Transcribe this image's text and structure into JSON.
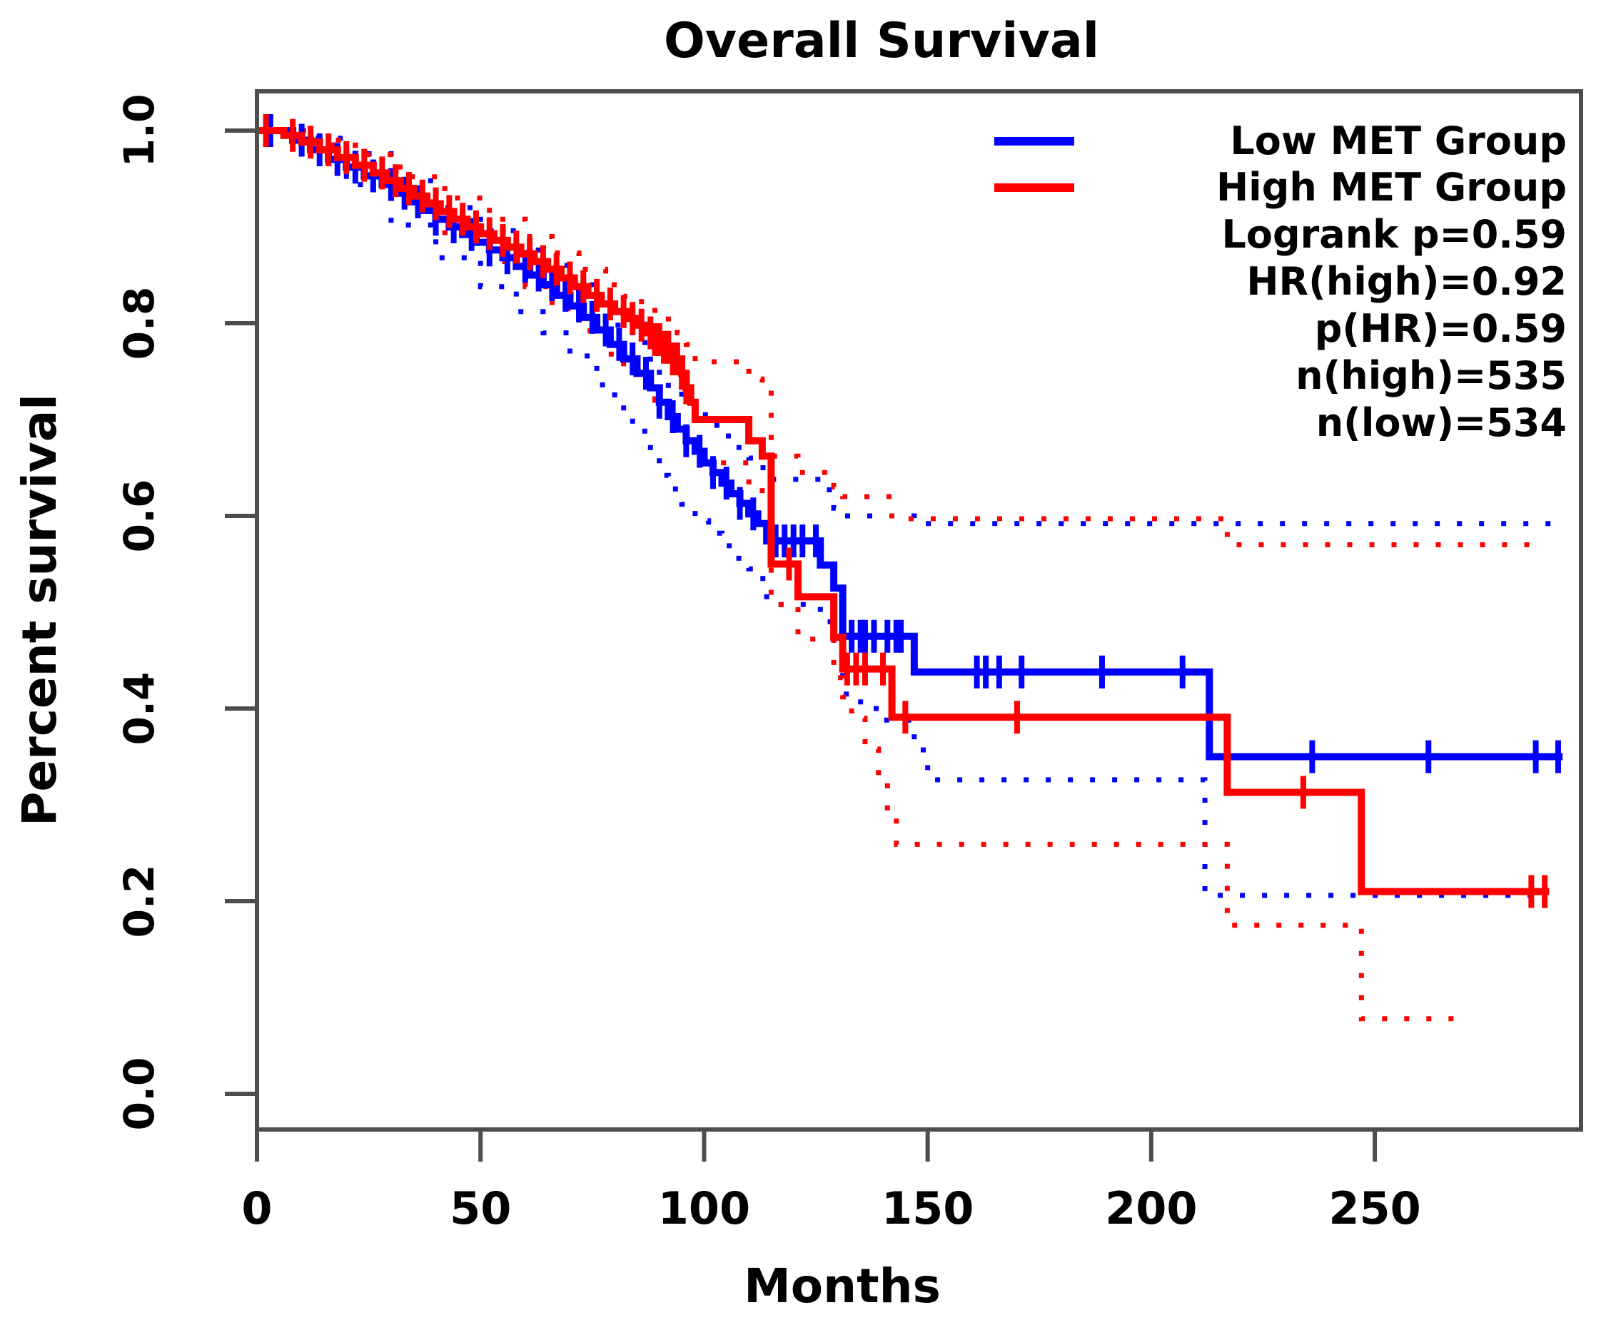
{
  "title": "Overall Survival",
  "xlabel": "Months",
  "ylabel": "Percent survival",
  "colors": {
    "low": "#0000FF",
    "high": "#FF0000",
    "axis": "#4d4d4d",
    "text": "#000000"
  },
  "legend": [
    {
      "label": "Low MET Group",
      "swatch": "#0000FF"
    },
    {
      "label": "High MET Group",
      "swatch": "#FF0000"
    },
    {
      "label": "Logrank p=0.59"
    },
    {
      "label": "HR(high)=0.92"
    },
    {
      "label": "p(HR)=0.59"
    },
    {
      "label": "n(high)=535"
    },
    {
      "label": "n(low)=534"
    }
  ],
  "chart_data": {
    "type": "line",
    "subtype": "kaplan-meier-step",
    "title": "Overall Survival",
    "xlabel": "Months",
    "ylabel": "Percent survival",
    "xlim": [
      0,
      295
    ],
    "ylim": [
      0,
      1.04
    ],
    "x_ticks": [
      0,
      50,
      100,
      150,
      200,
      250
    ],
    "y_ticks": [
      0.0,
      0.2,
      0.4,
      0.6,
      0.8,
      1.0
    ],
    "grid": false,
    "legend_position": "topright",
    "stats": {
      "logrank_p": 0.59,
      "hr_high": 0.92,
      "p_hr": 0.59,
      "n_high": 535,
      "n_low": 534
    },
    "series": [
      {
        "name": "Low MET Group",
        "color": "#0000FF",
        "style": "solid",
        "steps": [
          [
            0,
            1.0
          ],
          [
            8,
            0.99
          ],
          [
            12,
            0.98
          ],
          [
            16,
            0.97
          ],
          [
            20,
            0.962
          ],
          [
            24,
            0.953
          ],
          [
            28,
            0.944
          ],
          [
            31,
            0.935
          ],
          [
            34,
            0.926
          ],
          [
            37,
            0.917
          ],
          [
            40,
            0.908
          ],
          [
            43,
            0.9
          ],
          [
            46,
            0.892
          ],
          [
            49,
            0.884
          ],
          [
            52,
            0.876
          ],
          [
            55,
            0.868
          ],
          [
            58,
            0.859
          ],
          [
            61,
            0.85
          ],
          [
            64,
            0.84
          ],
          [
            67,
            0.829
          ],
          [
            70,
            0.818
          ],
          [
            73,
            0.806
          ],
          [
            76,
            0.793
          ],
          [
            79,
            0.778
          ],
          [
            82,
            0.763
          ],
          [
            85,
            0.748
          ],
          [
            88,
            0.733
          ],
          [
            90,
            0.718
          ],
          [
            92,
            0.703
          ],
          [
            94,
            0.69
          ],
          [
            96,
            0.678
          ],
          [
            98,
            0.667
          ],
          [
            100,
            0.655
          ],
          [
            102,
            0.645
          ],
          [
            104,
            0.634
          ],
          [
            106,
            0.623
          ],
          [
            108,
            0.613
          ],
          [
            110,
            0.602
          ],
          [
            112,
            0.592
          ],
          [
            114,
            0.574
          ],
          [
            126,
            0.549
          ],
          [
            129,
            0.525
          ],
          [
            131,
            0.475
          ],
          [
            147,
            0.438
          ],
          [
            213,
            0.35
          ],
          [
            292,
            0.35
          ]
        ],
        "censor_ticks": [
          3,
          10,
          14,
          18,
          22,
          26,
          30,
          33,
          36,
          40,
          44,
          48,
          52,
          56,
          60,
          63,
          66,
          69,
          72,
          75,
          78,
          81,
          84,
          87,
          90,
          93,
          96,
          99,
          102,
          105,
          108,
          111,
          116,
          118,
          120,
          122,
          125,
          133,
          135,
          136,
          138,
          141,
          143,
          144,
          161,
          163,
          166,
          171,
          189,
          207,
          236,
          262,
          286,
          291
        ]
      },
      {
        "name": "High MET Group",
        "color": "#FF0000",
        "style": "solid",
        "steps": [
          [
            0,
            1.0
          ],
          [
            6,
            0.995
          ],
          [
            10,
            0.988
          ],
          [
            14,
            0.98
          ],
          [
            18,
            0.972
          ],
          [
            22,
            0.964
          ],
          [
            26,
            0.956
          ],
          [
            29,
            0.948
          ],
          [
            32,
            0.94
          ],
          [
            35,
            0.932
          ],
          [
            38,
            0.924
          ],
          [
            41,
            0.916
          ],
          [
            44,
            0.908
          ],
          [
            47,
            0.9
          ],
          [
            50,
            0.893
          ],
          [
            53,
            0.886
          ],
          [
            56,
            0.879
          ],
          [
            59,
            0.872
          ],
          [
            62,
            0.864
          ],
          [
            65,
            0.856
          ],
          [
            68,
            0.847
          ],
          [
            71,
            0.838
          ],
          [
            74,
            0.829
          ],
          [
            77,
            0.82
          ],
          [
            80,
            0.812
          ],
          [
            83,
            0.805
          ],
          [
            85,
            0.798
          ],
          [
            87,
            0.79
          ],
          [
            89,
            0.783
          ],
          [
            91,
            0.775
          ],
          [
            93,
            0.763
          ],
          [
            95,
            0.748
          ],
          [
            96,
            0.733
          ],
          [
            97,
            0.718
          ],
          [
            98,
            0.7
          ],
          [
            110,
            0.678
          ],
          [
            113,
            0.662
          ],
          [
            115,
            0.55
          ],
          [
            121,
            0.516
          ],
          [
            129,
            0.474
          ],
          [
            131,
            0.441
          ],
          [
            142,
            0.391
          ],
          [
            217,
            0.313
          ],
          [
            247,
            0.21
          ],
          [
            289,
            0.21
          ]
        ],
        "censor_ticks": [
          2,
          8,
          12,
          16,
          20,
          24,
          28,
          31,
          34,
          37,
          40,
          43,
          46,
          49,
          52,
          55,
          58,
          61,
          64,
          67,
          70,
          73,
          76,
          79,
          82,
          84,
          86,
          88,
          89,
          90,
          91,
          92,
          93,
          94,
          95,
          96,
          119,
          132,
          134,
          136,
          140,
          145,
          170,
          234,
          285,
          288
        ]
      },
      {
        "name": "Low MET 95% CI upper",
        "color": "#0000FF",
        "style": "dotted",
        "steps": [
          [
            0,
            1.0
          ],
          [
            10,
            0.992
          ],
          [
            20,
            0.976
          ],
          [
            30,
            0.948
          ],
          [
            40,
            0.92
          ],
          [
            50,
            0.896
          ],
          [
            58,
            0.876
          ],
          [
            64,
            0.86
          ],
          [
            70,
            0.84
          ],
          [
            76,
            0.815
          ],
          [
            80,
            0.798
          ],
          [
            84,
            0.78
          ],
          [
            88,
            0.76
          ],
          [
            90,
            0.744
          ],
          [
            92,
            0.73
          ],
          [
            95,
            0.718
          ],
          [
            98,
            0.705
          ],
          [
            101,
            0.694
          ],
          [
            104,
            0.683
          ],
          [
            107,
            0.671
          ],
          [
            110,
            0.66
          ],
          [
            112,
            0.65
          ],
          [
            114,
            0.638
          ],
          [
            126,
            0.627
          ],
          [
            129,
            0.608
          ],
          [
            131,
            0.6
          ],
          [
            147,
            0.592
          ],
          [
            290,
            0.592
          ]
        ],
        "censor_ticks": []
      },
      {
        "name": "Low MET 95% CI lower",
        "color": "#0000FF",
        "style": "dotted",
        "steps": [
          [
            0,
            1.0
          ],
          [
            10,
            0.985
          ],
          [
            20,
            0.944
          ],
          [
            30,
            0.902
          ],
          [
            40,
            0.868
          ],
          [
            50,
            0.838
          ],
          [
            58,
            0.812
          ],
          [
            64,
            0.79
          ],
          [
            70,
            0.766
          ],
          [
            76,
            0.736
          ],
          [
            80,
            0.712
          ],
          [
            84,
            0.688
          ],
          [
            88,
            0.662
          ],
          [
            90,
            0.642
          ],
          [
            92,
            0.628
          ],
          [
            95,
            0.612
          ],
          [
            98,
            0.595
          ],
          [
            101,
            0.582
          ],
          [
            104,
            0.569
          ],
          [
            107,
            0.556
          ],
          [
            110,
            0.545
          ],
          [
            112,
            0.535
          ],
          [
            114,
            0.508
          ],
          [
            126,
            0.49
          ],
          [
            129,
            0.465
          ],
          [
            131,
            0.415
          ],
          [
            135,
            0.4
          ],
          [
            140,
            0.388
          ],
          [
            147,
            0.357
          ],
          [
            150,
            0.326
          ],
          [
            212,
            0.206
          ],
          [
            288,
            0.206
          ]
        ],
        "censor_ticks": []
      },
      {
        "name": "High MET 95% CI upper",
        "color": "#FF0000",
        "style": "dotted",
        "steps": [
          [
            0,
            1.0
          ],
          [
            12,
            0.99
          ],
          [
            22,
            0.975
          ],
          [
            32,
            0.952
          ],
          [
            42,
            0.93
          ],
          [
            52,
            0.908
          ],
          [
            60,
            0.89
          ],
          [
            66,
            0.873
          ],
          [
            72,
            0.856
          ],
          [
            78,
            0.84
          ],
          [
            82,
            0.828
          ],
          [
            86,
            0.818
          ],
          [
            89,
            0.81
          ],
          [
            92,
            0.8
          ],
          [
            94,
            0.79
          ],
          [
            96,
            0.778
          ],
          [
            98,
            0.76
          ],
          [
            110,
            0.742
          ],
          [
            113,
            0.73
          ],
          [
            115,
            0.662
          ],
          [
            121,
            0.645
          ],
          [
            129,
            0.63
          ],
          [
            131,
            0.62
          ],
          [
            142,
            0.597
          ],
          [
            217,
            0.57
          ],
          [
            288,
            0.57
          ]
        ],
        "censor_ticks": []
      },
      {
        "name": "High MET 95% CI lower",
        "color": "#FF0000",
        "style": "dotted",
        "steps": [
          [
            0,
            1.0
          ],
          [
            12,
            0.985
          ],
          [
            22,
            0.958
          ],
          [
            32,
            0.926
          ],
          [
            42,
            0.894
          ],
          [
            52,
            0.864
          ],
          [
            60,
            0.838
          ],
          [
            66,
            0.815
          ],
          [
            72,
            0.792
          ],
          [
            78,
            0.768
          ],
          [
            82,
            0.75
          ],
          [
            86,
            0.735
          ],
          [
            89,
            0.72
          ],
          [
            92,
            0.705
          ],
          [
            94,
            0.69
          ],
          [
            96,
            0.672
          ],
          [
            98,
            0.655
          ],
          [
            110,
            0.63
          ],
          [
            113,
            0.615
          ],
          [
            115,
            0.508
          ],
          [
            121,
            0.472
          ],
          [
            129,
            0.432
          ],
          [
            131,
            0.412
          ],
          [
            133,
            0.39
          ],
          [
            136,
            0.358
          ],
          [
            139,
            0.325
          ],
          [
            141,
            0.292
          ],
          [
            143,
            0.259
          ],
          [
            217,
            0.175
          ],
          [
            247,
            0.078
          ],
          [
            270,
            0.078
          ]
        ],
        "censor_ticks": []
      }
    ]
  }
}
